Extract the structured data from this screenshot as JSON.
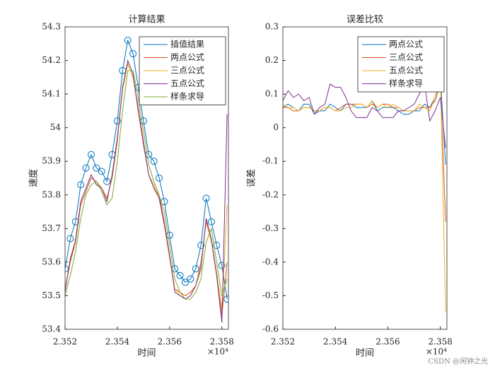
{
  "chart_data": [
    {
      "type": "line",
      "title": "计算结果",
      "xlabel": "时间",
      "ylabel": "速度",
      "x_exponent": "×10⁴",
      "x": [
        2.352,
        2.3522,
        2.3524,
        2.3526,
        2.3528,
        2.353,
        2.3532,
        2.3534,
        2.3536,
        2.3538,
        2.354,
        2.3542,
        2.3544,
        2.3546,
        2.3548,
        2.355,
        2.3552,
        2.3554,
        2.3556,
        2.3558,
        2.356,
        2.3562,
        2.3564,
        2.3566,
        2.3568,
        2.357,
        2.3572,
        2.3574,
        2.3576,
        2.3578,
        2.358,
        2.3582
      ],
      "xlim": [
        2.352,
        2.35825
      ],
      "xticks": [
        2.352,
        2.354,
        2.356,
        2.358
      ],
      "ylim": [
        53.4,
        54.3
      ],
      "yticks": [
        53.4,
        53.5,
        53.6,
        53.7,
        53.8,
        53.9,
        54,
        54.1,
        54.2,
        54.3
      ],
      "legend": "upper right",
      "series": [
        {
          "name": "插值结果",
          "color": "#0072BD",
          "marker": "o",
          "values": [
            53.58,
            53.67,
            53.72,
            53.83,
            53.88,
            53.92,
            53.88,
            53.87,
            53.84,
            53.92,
            54.02,
            54.17,
            54.26,
            54.22,
            54.12,
            54.02,
            53.92,
            53.9,
            53.85,
            53.78,
            53.68,
            53.58,
            53.56,
            53.54,
            53.55,
            53.58,
            53.65,
            53.79,
            53.72,
            53.65,
            53.59,
            53.49
          ]
        },
        {
          "name": "两点公式",
          "color": "#D95319",
          "values": [
            53.52,
            53.6,
            53.66,
            53.77,
            53.81,
            53.85,
            53.84,
            53.82,
            53.79,
            53.85,
            53.96,
            54.12,
            54.19,
            54.15,
            54.06,
            53.96,
            53.86,
            53.82,
            53.8,
            53.72,
            53.62,
            53.52,
            53.51,
            53.5,
            53.51,
            53.53,
            53.6,
            53.72,
            53.66,
            53.56,
            53.44,
            53.6
          ]
        },
        {
          "name": "三点公式",
          "color": "#EDB120",
          "values": [
            53.52,
            53.61,
            53.67,
            53.78,
            53.82,
            53.86,
            53.83,
            53.82,
            53.78,
            53.86,
            53.97,
            54.11,
            54.19,
            54.15,
            54.05,
            53.95,
            53.86,
            53.83,
            53.79,
            53.71,
            53.61,
            53.52,
            53.5,
            53.49,
            53.5,
            53.53,
            53.59,
            53.73,
            53.66,
            53.57,
            53.46,
            53.77
          ]
        },
        {
          "name": "五点公式",
          "color": "#7E2F8E",
          "values": [
            53.51,
            53.61,
            53.66,
            53.78,
            53.82,
            53.86,
            53.83,
            53.82,
            53.78,
            53.86,
            53.97,
            54.12,
            54.2,
            54.16,
            54.05,
            53.95,
            53.86,
            53.82,
            53.79,
            53.71,
            53.62,
            53.51,
            53.5,
            53.49,
            53.5,
            53.53,
            53.58,
            53.73,
            53.67,
            53.56,
            53.42,
            54.04
          ]
        },
        {
          "name": "样条求导",
          "color": "#77AC30",
          "values": [
            53.5,
            53.56,
            53.63,
            53.73,
            53.8,
            53.83,
            53.84,
            53.81,
            53.77,
            53.79,
            53.9,
            54.05,
            54.17,
            54.17,
            54.09,
            53.99,
            53.89,
            53.84,
            53.8,
            53.75,
            53.65,
            53.55,
            53.51,
            53.49,
            53.49,
            53.51,
            53.55,
            53.66,
            53.7,
            53.6,
            53.5,
            53.55
          ]
        }
      ]
    },
    {
      "type": "line",
      "title": "误差比较",
      "xlabel": "时间",
      "ylabel": "误差",
      "x_exponent": "×10⁴",
      "x": [
        2.352,
        2.3522,
        2.3524,
        2.3526,
        2.3528,
        2.353,
        2.3532,
        2.3534,
        2.3536,
        2.3538,
        2.354,
        2.3542,
        2.3544,
        2.3546,
        2.3548,
        2.355,
        2.3552,
        2.3554,
        2.3556,
        2.3558,
        2.356,
        2.3562,
        2.3564,
        2.3566,
        2.3568,
        2.357,
        2.3572,
        2.3574,
        2.3576,
        2.3578,
        2.358,
        2.3582
      ],
      "xlim": [
        2.352,
        2.35825
      ],
      "xticks": [
        2.352,
        2.354,
        2.356,
        2.358
      ],
      "ylim": [
        -0.6,
        0.3
      ],
      "yticks": [
        -0.6,
        -0.5,
        -0.4,
        -0.3,
        -0.2,
        -0.1,
        0,
        0.1,
        0.2,
        0.3
      ],
      "legend": "upper right",
      "series": [
        {
          "name": "两点公式",
          "color": "#0072BD",
          "values": [
            0.06,
            0.07,
            0.06,
            0.05,
            0.07,
            0.07,
            0.04,
            0.05,
            0.05,
            0.07,
            0.06,
            0.05,
            0.07,
            0.07,
            0.06,
            0.06,
            0.06,
            0.08,
            0.05,
            0.06,
            0.06,
            0.06,
            0.05,
            0.04,
            0.04,
            0.05,
            0.05,
            0.07,
            0.06,
            0.09,
            0.15,
            -0.11
          ]
        },
        {
          "name": "三点公式",
          "color": "#D95319",
          "values": [
            0.06,
            0.06,
            0.05,
            0.05,
            0.06,
            0.06,
            0.05,
            0.05,
            0.06,
            0.06,
            0.05,
            0.06,
            0.07,
            0.07,
            0.07,
            0.07,
            0.06,
            0.07,
            0.06,
            0.07,
            0.07,
            0.06,
            0.06,
            0.05,
            0.05,
            0.05,
            0.06,
            0.06,
            0.06,
            0.08,
            0.13,
            -0.28
          ]
        },
        {
          "name": "五点公式",
          "color": "#EDB120",
          "values": [
            0.07,
            0.06,
            0.06,
            0.05,
            0.06,
            0.06,
            0.05,
            0.05,
            0.06,
            0.06,
            0.05,
            0.05,
            0.06,
            0.06,
            0.07,
            0.07,
            0.06,
            0.08,
            0.06,
            0.07,
            0.06,
            0.07,
            0.06,
            0.05,
            0.05,
            0.05,
            0.07,
            0.06,
            0.05,
            0.09,
            0.17,
            -0.55
          ]
        },
        {
          "name": "样条求导",
          "color": "#7E2F8E",
          "values": [
            0.08,
            0.11,
            0.09,
            0.1,
            0.08,
            0.09,
            0.04,
            0.06,
            0.07,
            0.13,
            0.12,
            0.12,
            0.09,
            0.05,
            0.03,
            0.03,
            0.03,
            0.06,
            0.05,
            0.03,
            0.03,
            0.03,
            0.05,
            0.05,
            0.06,
            0.07,
            0.1,
            0.13,
            0.02,
            0.05,
            0.09,
            -0.06
          ]
        }
      ]
    }
  ],
  "watermark": "CSDN @闲钟之光"
}
